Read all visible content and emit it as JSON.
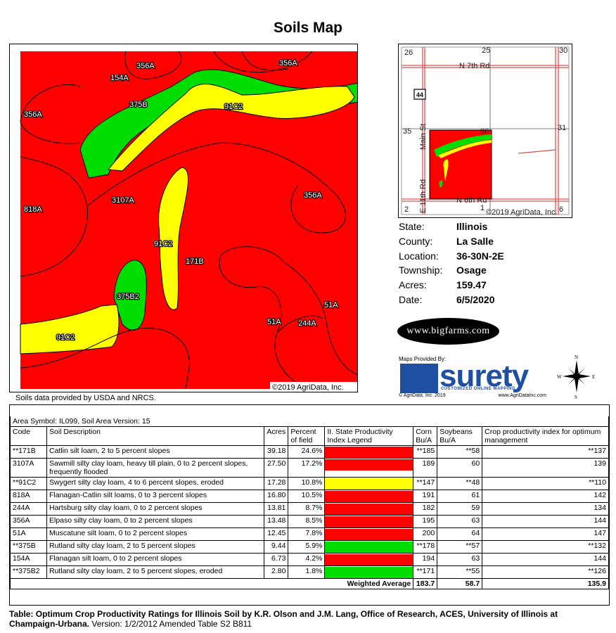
{
  "title": "Soils Map",
  "map": {
    "labels": {
      "a154": "154A",
      "a356_top": "356A",
      "a356_topright": "356A",
      "b375": "375B",
      "c91_top": "91C2",
      "a356_left": "356A",
      "a818": "818A",
      "a3107": "3107A",
      "a356_right": "356A",
      "c91_mid": "91C2",
      "b171": "171B",
      "b2_375": "375B2",
      "a51_right": "51A",
      "a51_mid": "51A",
      "a244": "244A",
      "c91_bottom": "91C2"
    },
    "copyright": "©2019 AgriData, Inc.",
    "source_note": "Soils data provided by USDA and NRCS.",
    "colors": {
      "productive": "#ff0000",
      "moderate": "#ffff00",
      "green": "#00dd00"
    }
  },
  "location_map": {
    "sections": [
      "26",
      "25",
      "30",
      "35",
      "36",
      "31",
      "2",
      "1",
      "6"
    ],
    "road_north": "N 7th Rd",
    "road_south": "N 6th Rd",
    "road_main": "Main St",
    "road_east": "E 11th Rd",
    "route": "44",
    "copyright": "©2019 AgriData, Inc."
  },
  "info": {
    "state_label": "State:",
    "state": "Illinois",
    "county_label": "County:",
    "county": "La Salle",
    "location_label": "Location:",
    "location": "36-30N-2E",
    "township_label": "Township:",
    "township": "Osage",
    "acres_label": "Acres:",
    "acres": "159.47",
    "date_label": "Date:",
    "date": "6/5/2020"
  },
  "logos": {
    "bigfarms": "www.bigfarms.com",
    "maps_provided_by": "Maps Provided By:",
    "surety": "surety",
    "surety_tag": "CUSTOMIZED ONLINE MAPPING",
    "surety_copy": "© AgriData, Inc. 2019",
    "surety_url": "www.AgriDataInc.com"
  },
  "compass": {
    "n": "N",
    "s": "S",
    "e": "E",
    "w": "W"
  },
  "table": {
    "area_symbol": "Area Symbol: IL099, Soil Area Version: 15",
    "headers": {
      "code": "Code",
      "description": "Soil Description",
      "acres": "Acres",
      "percent": "Percent of field",
      "legend": "II. State Productivity Index Legend",
      "corn": "Corn Bu/A",
      "soybeans": "Soybeans Bu/A",
      "cpi": "Crop productivity index for optimum management"
    },
    "rows": [
      {
        "code": "**171B",
        "desc": "Catlin silt loam, 2 to 5 percent slopes",
        "acres": "39.18",
        "pct": "24.6%",
        "color": "#ff0000",
        "corn": "**185",
        "soy": "**58",
        "cpi": "**137"
      },
      {
        "code": "3107A",
        "desc": "Sawmill silty clay loam, heavy till plain, 0 to 2 percent slopes, frequently flooded",
        "acres": "27.50",
        "pct": "17.2%",
        "color": "#ff0000",
        "corn": "189",
        "soy": "60",
        "cpi": "139"
      },
      {
        "code": "**91C2",
        "desc": "Swygert silty clay loam, 4 to 6 percent slopes, eroded",
        "acres": "17.28",
        "pct": "10.8%",
        "color": "#ffff00",
        "corn": "**147",
        "soy": "**48",
        "cpi": "**110"
      },
      {
        "code": "818A",
        "desc": "Flanagan-Catlin silt loams, 0 to 3 percent slopes",
        "acres": "16.80",
        "pct": "10.5%",
        "color": "#ff0000",
        "corn": "191",
        "soy": "61",
        "cpi": "142"
      },
      {
        "code": "244A",
        "desc": "Hartsburg silty clay loam, 0 to 2 percent slopes",
        "acres": "13.81",
        "pct": "8.7%",
        "color": "#ff0000",
        "corn": "182",
        "soy": "59",
        "cpi": "134"
      },
      {
        "code": "356A",
        "desc": "Elpaso silty clay loam, 0 to 2 percent slopes",
        "acres": "13.48",
        "pct": "8.5%",
        "color": "#ff0000",
        "corn": "195",
        "soy": "63",
        "cpi": "144"
      },
      {
        "code": "51A",
        "desc": "Muscatune silt loam, 0 to 2 percent slopes",
        "acres": "12.45",
        "pct": "7.8%",
        "color": "#ff0000",
        "corn": "200",
        "soy": "64",
        "cpi": "147"
      },
      {
        "code": "**375B",
        "desc": "Rutland silty clay loam, 2 to 5 percent slopes",
        "acres": "9.44",
        "pct": "5.9%",
        "color": "#00dd00",
        "corn": "**178",
        "soy": "**57",
        "cpi": "**132"
      },
      {
        "code": "154A",
        "desc": "Flanagan silt loam, 0 to 2 percent slopes",
        "acres": "6.73",
        "pct": "4.2%",
        "color": "#ff0000",
        "corn": "194",
        "soy": "63",
        "cpi": "144"
      },
      {
        "code": "**375B2",
        "desc": "Rutland silty clay loam, 2 to 5 percent slopes, eroded",
        "acres": "2.80",
        "pct": "1.8%",
        "color": "#00dd00",
        "corn": "**171",
        "soy": "**55",
        "cpi": "**126"
      }
    ],
    "weighted": {
      "label": "Weighted Average",
      "corn": "183.7",
      "soy": "58.7",
      "cpi": "135.9"
    }
  },
  "caption": {
    "bold": "Table: Optimum Crop Productivity Ratings for Illinois Soil by K.R. Olson and J.M. Lang, Office of Research, ACES, University of Illinois at Champaign-Urbana.",
    "rest": " Version: 1/2/2012 Amended Table S2 B811"
  }
}
